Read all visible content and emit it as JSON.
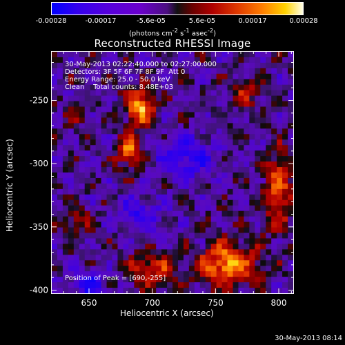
{
  "colorbar": {
    "ticks": [
      "-0.00028",
      "-0.00017",
      "-5.6e-05",
      "5.6e-05",
      "0.00017",
      "0.00028"
    ],
    "unit_prefix": "(photons cm",
    "unit_sup1": "-2",
    "unit_mid1": " s",
    "unit_sup2": "-1",
    "unit_mid2": " asec",
    "unit_sup3": "-2",
    "unit_suffix": ")",
    "colors": [
      "#0000ff",
      "#6a00cc",
      "#111111",
      "#b00000",
      "#ff7f00",
      "#ffffe8"
    ]
  },
  "chart_data": {
    "type": "heatmap",
    "title": "Reconstructed RHESSI Image",
    "xlabel": "Heliocentric X (arcsec)",
    "ylabel": "Heliocentric Y (arcsec)",
    "xlim": [
      620,
      812
    ],
    "ylim": [
      -403,
      -211
    ],
    "x_ticks": [
      650,
      700,
      750,
      800
    ],
    "y_ticks": [
      -250,
      -300,
      -350,
      -400
    ],
    "x_tick_labels": [
      "650",
      "700",
      "750",
      "800"
    ],
    "y_tick_labels": [
      "-250",
      "-300",
      "-350",
      "-400"
    ],
    "value_range": [
      -0.00028,
      0.00028
    ],
    "peak": [
      690,
      -255
    ],
    "hotspots": [
      {
        "x": 690,
        "y": -255,
        "amp": 1.0,
        "sx": 8,
        "sy": 10
      },
      {
        "x": 682,
        "y": -290,
        "amp": 0.85,
        "sx": 7,
        "sy": 9
      },
      {
        "x": 760,
        "y": -380,
        "amp": 0.95,
        "sx": 16,
        "sy": 12
      },
      {
        "x": 800,
        "y": -320,
        "amp": 0.7,
        "sx": 8,
        "sy": 22
      },
      {
        "x": 700,
        "y": -385,
        "amp": 0.6,
        "sx": 14,
        "sy": 9
      },
      {
        "x": 640,
        "y": -345,
        "amp": 0.45,
        "sx": 8,
        "sy": 8
      },
      {
        "x": 640,
        "y": -260,
        "amp": 0.35,
        "sx": 6,
        "sy": 6
      },
      {
        "x": 775,
        "y": -245,
        "amp": 0.45,
        "sx": 8,
        "sy": 8
      },
      {
        "x": 650,
        "y": -395,
        "amp": -0.6,
        "sx": 10,
        "sy": 7
      },
      {
        "x": 725,
        "y": -295,
        "amp": -0.55,
        "sx": 16,
        "sy": 12
      },
      {
        "x": 690,
        "y": -340,
        "amp": -0.45,
        "sx": 12,
        "sy": 9
      }
    ]
  },
  "annotations": {
    "line1": "30-May-2013 02:22:40.000 to 02:27:00.000",
    "line2": "Detectors: 3F 5F 6F 7F 8F 9F  Att 0",
    "line3": "Energy Range: 25.0 - 50.0 keV",
    "line4": "Clean    Total counts: 8.48E+03",
    "peak": "Position of Peak = [690,-255]"
  },
  "footer": {
    "date": "30-May-2013 08:14"
  }
}
